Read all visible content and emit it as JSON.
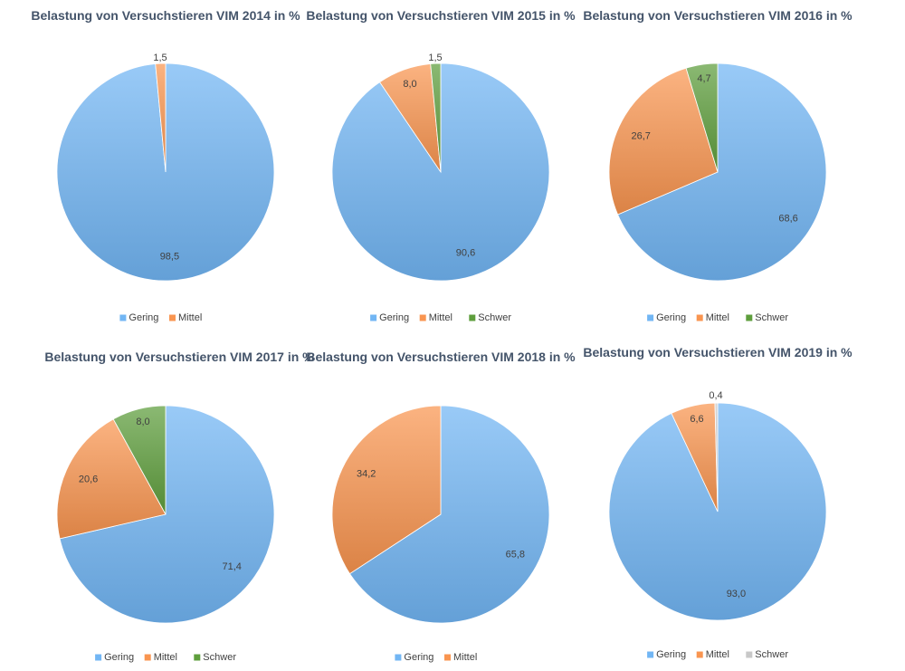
{
  "colors": {
    "gering": "#72b6f4",
    "mittel": "#f99550",
    "schwer_green": "#5e9e3c",
    "schwer_grey": "#c8c8c8"
  },
  "chart_data": [
    {
      "type": "pie",
      "title": "Belastung von Versuchstieren VIM 2014 in %",
      "series": [
        {
          "name": "Gering",
          "value": 98.5,
          "label": "98,5",
          "color": "gering"
        },
        {
          "name": "Mittel",
          "value": 1.5,
          "label": "1,5",
          "color": "mittel"
        }
      ],
      "legend": [
        "Gering",
        "Mittel"
      ]
    },
    {
      "type": "pie",
      "title": "Belastung von Versuchstieren VIM 2015 in %",
      "series": [
        {
          "name": "Gering",
          "value": 90.6,
          "label": "90,6",
          "color": "gering"
        },
        {
          "name": "Mittel",
          "value": 8.0,
          "label": "8,0",
          "color": "mittel"
        },
        {
          "name": "Schwer",
          "value": 1.5,
          "label": "1,5",
          "color": "schwer_green"
        }
      ],
      "legend": [
        "Gering",
        "Mittel",
        "Schwer"
      ]
    },
    {
      "type": "pie",
      "title": "Belastung von Versuchstieren VIM 2016 in %",
      "series": [
        {
          "name": "Gering",
          "value": 68.6,
          "label": "68,6",
          "color": "gering"
        },
        {
          "name": "Mittel",
          "value": 26.7,
          "label": "26,7",
          "color": "mittel"
        },
        {
          "name": "Schwer",
          "value": 4.7,
          "label": "4,7",
          "color": "schwer_green"
        }
      ],
      "legend": [
        "Gering",
        "Mittel",
        "Schwer"
      ]
    },
    {
      "type": "pie",
      "title": "Belastung von Versuchstieren VIM 2017 in %",
      "series": [
        {
          "name": "Gering",
          "value": 71.4,
          "label": "71,4",
          "color": "gering"
        },
        {
          "name": "Mittel",
          "value": 20.6,
          "label": "20,6",
          "color": "mittel"
        },
        {
          "name": "Schwer",
          "value": 8.0,
          "label": "8,0",
          "color": "schwer_green"
        }
      ],
      "legend": [
        "Gering",
        "Mittel",
        "Schwer"
      ]
    },
    {
      "type": "pie",
      "title": "Belastung von Versuchstieren VIM 2018 in %",
      "series": [
        {
          "name": "Gering",
          "value": 65.8,
          "label": "65,8",
          "color": "gering"
        },
        {
          "name": "Mittel",
          "value": 34.2,
          "label": "34,2",
          "color": "mittel"
        }
      ],
      "legend": [
        "Gering",
        "Mittel"
      ]
    },
    {
      "type": "pie",
      "title": "Belastung von Versuchstieren VIM 2019 in %",
      "series": [
        {
          "name": "Gering",
          "value": 93.0,
          "label": "93,0",
          "color": "gering"
        },
        {
          "name": "Mittel",
          "value": 6.6,
          "label": "6,6",
          "color": "mittel"
        },
        {
          "name": "Schwer",
          "value": 0.4,
          "label": "0,4",
          "color": "schwer_grey"
        }
      ],
      "legend": [
        "Gering",
        "Mittel",
        "Schwer"
      ]
    }
  ]
}
